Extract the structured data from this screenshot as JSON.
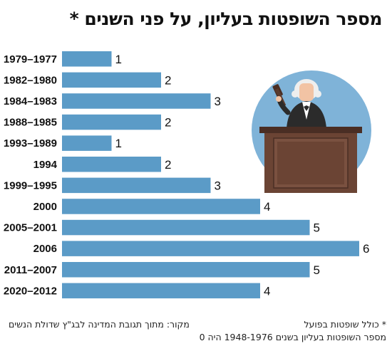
{
  "title": "מספר השופטות בעליון, על פני השנים *",
  "chart_data": {
    "type": "bar",
    "orientation": "horizontal",
    "categories": [
      "1979–1977",
      "1982–1980",
      "1984–1983",
      "1988–1985",
      "1993–1989",
      "1994",
      "1999–1995",
      "2000",
      "2005–2001",
      "2006",
      "2011–2007",
      "2020–2012"
    ],
    "values": [
      1,
      2,
      3,
      2,
      1,
      2,
      3,
      4,
      5,
      6,
      5,
      4
    ],
    "xlim": [
      0,
      6
    ],
    "grid": false,
    "bar_color": "#5b9bc7",
    "data_labels": true
  },
  "illustration": {
    "name": "judge-illustration",
    "colors": {
      "circle": "#7fb3d8",
      "bench": "#5a3a2c",
      "robe": "#2b2b2b",
      "skin": "#f2c3a4"
    }
  },
  "footer": {
    "footnote": "* כולל שופטות בפועל",
    "source": "מקור: מתוך תגובת המדינה לבג\"ץ שדולת הנשים",
    "note": "מספר השופטות בעליון בשנים 1948-1976 היה 0"
  }
}
